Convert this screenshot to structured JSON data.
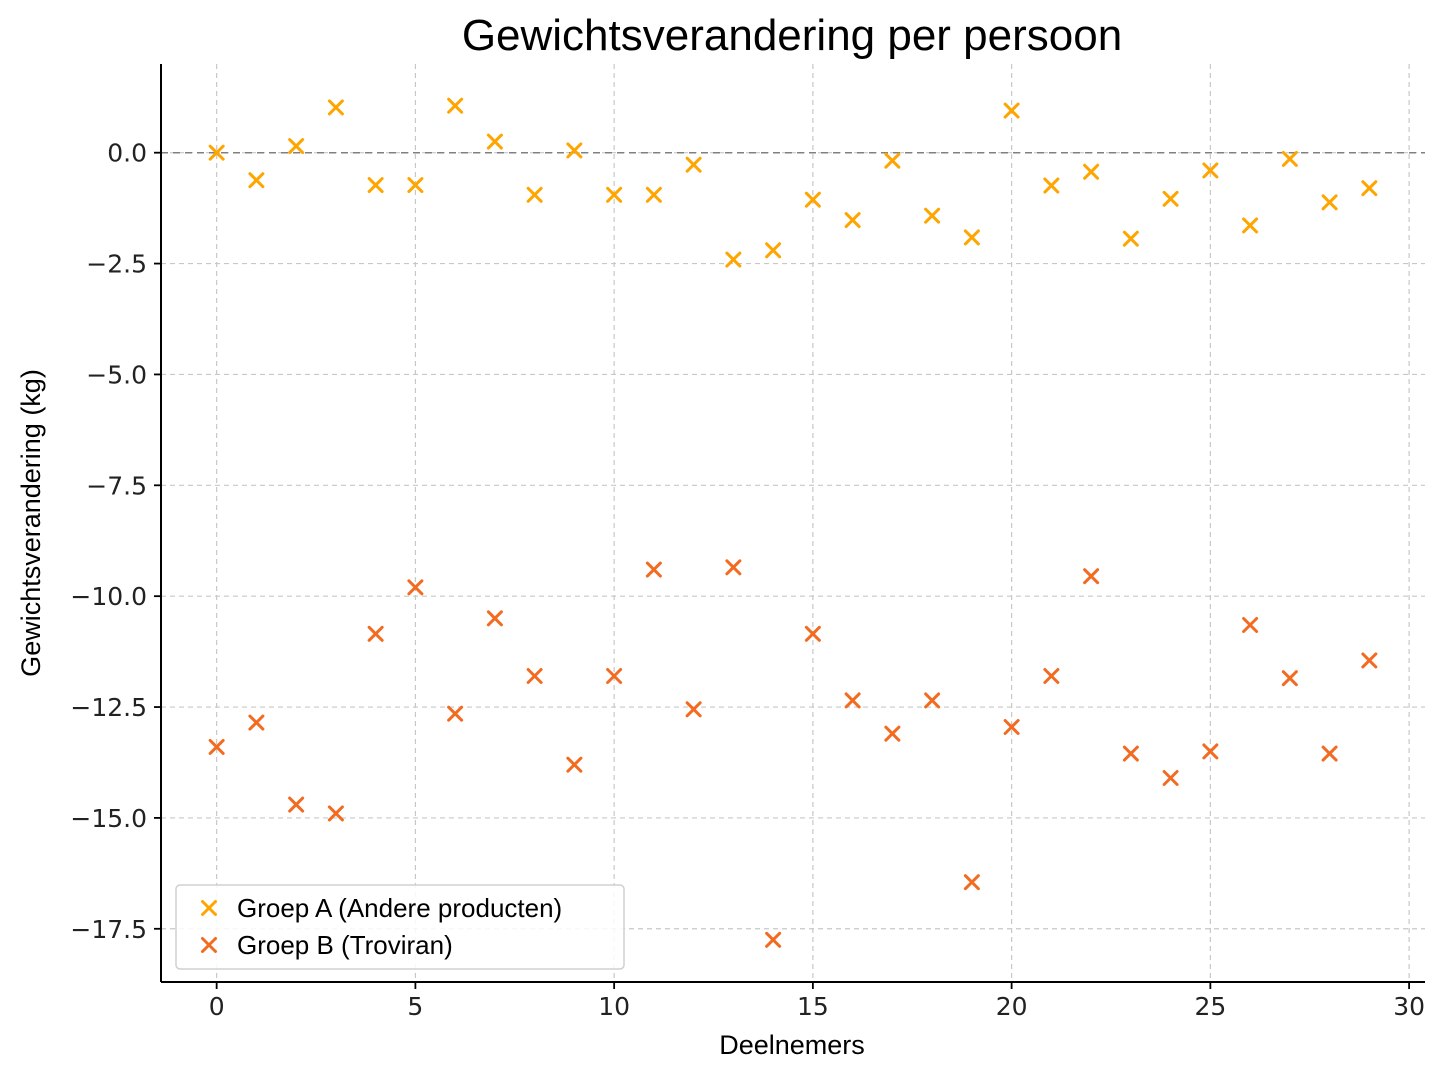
{
  "chart_data": {
    "type": "scatter",
    "title": "Gewichtsverandering per persoon",
    "xlabel": "Deelnemers",
    "ylabel": "Gewichtsverandering (kg)",
    "xlim": [
      -1.4,
      30.4
    ],
    "ylim": [
      -18.7,
      2.0
    ],
    "xticks": [
      0,
      5,
      10,
      15,
      20,
      25,
      30
    ],
    "xtick_labels": [
      "0",
      "5",
      "10",
      "15",
      "20",
      "25",
      "30"
    ],
    "yticks": [
      0.0,
      -2.5,
      -5.0,
      -7.5,
      -10.0,
      -12.5,
      -15.0,
      -17.5
    ],
    "ytick_labels": [
      "0.0",
      "−2.5",
      "−5.0",
      "−7.5",
      "−10.0",
      "−12.5",
      "−15.0",
      "−17.5"
    ],
    "grid": true,
    "reference_line": 0.0,
    "legend_position": "lower-left",
    "marker": "x",
    "series": [
      {
        "name": "Groep A (Andere producten)",
        "color": "#FFA500",
        "x": [
          0,
          1,
          2,
          3,
          4,
          5,
          6,
          7,
          8,
          9,
          10,
          11,
          12,
          13,
          14,
          15,
          16,
          17,
          18,
          19,
          20,
          21,
          22,
          23,
          24,
          25,
          26,
          27,
          28,
          29
        ],
        "y": [
          0.0,
          -0.62,
          0.15,
          1.02,
          -0.73,
          -0.73,
          1.06,
          0.25,
          -0.95,
          0.05,
          -0.95,
          -0.95,
          -0.27,
          -2.41,
          -2.2,
          -1.06,
          -1.52,
          -0.18,
          -1.42,
          -1.91,
          0.95,
          -0.74,
          -0.43,
          -1.94,
          -1.04,
          -0.4,
          -1.64,
          -0.14,
          -1.12,
          -0.8
        ]
      },
      {
        "name": "Groep B (Troviran)",
        "color": "#F26B21",
        "x": [
          0,
          1,
          2,
          3,
          4,
          5,
          6,
          7,
          8,
          9,
          10,
          11,
          12,
          13,
          14,
          15,
          16,
          17,
          18,
          19,
          20,
          21,
          22,
          23,
          24,
          25,
          26,
          27,
          28,
          29
        ],
        "y": [
          -13.4,
          -12.85,
          -14.7,
          -14.9,
          -10.85,
          -9.8,
          -12.65,
          -10.5,
          -11.8,
          -13.8,
          -11.8,
          -9.4,
          -12.55,
          -9.35,
          -17.75,
          -10.85,
          -12.35,
          -13.1,
          -12.35,
          -16.45,
          -12.95,
          -11.8,
          -9.55,
          -13.55,
          -14.1,
          -13.5,
          -10.65,
          -11.85,
          -13.55,
          -11.45
        ]
      }
    ]
  }
}
